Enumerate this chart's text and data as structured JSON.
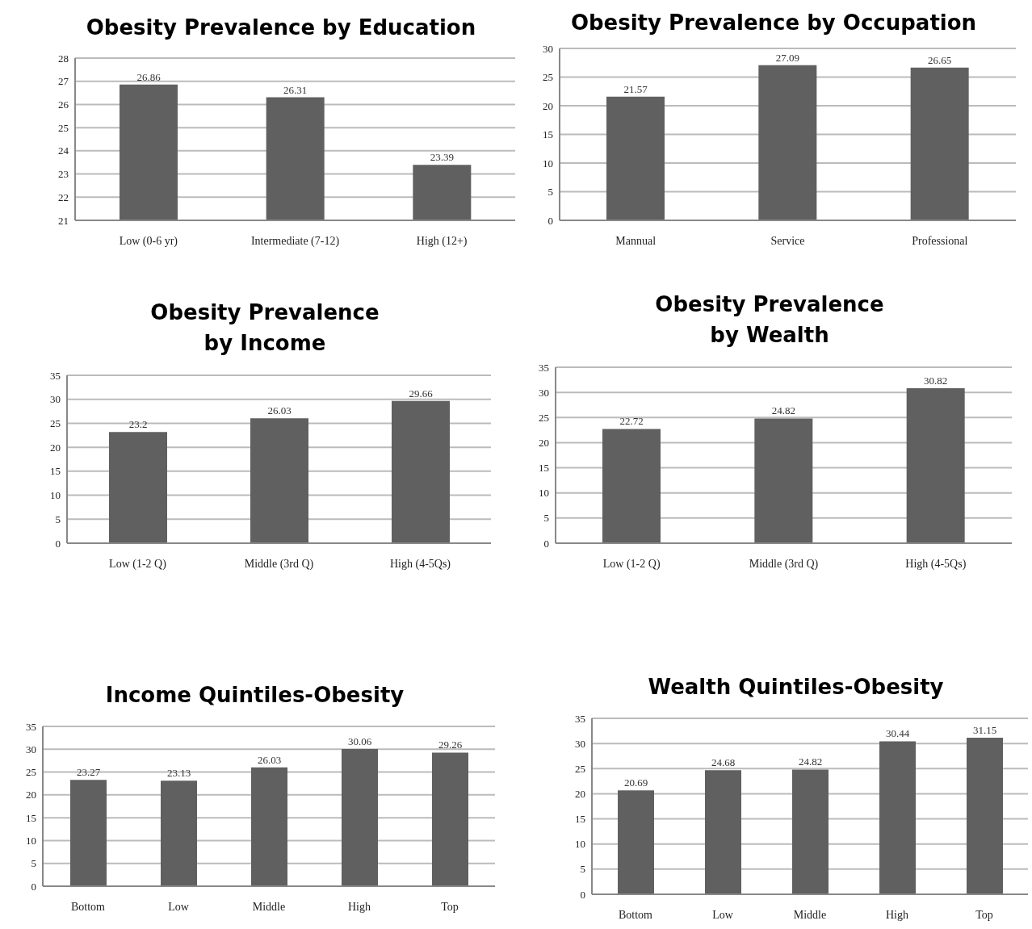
{
  "chart_data": [
    {
      "type": "bar",
      "title": "Obesity Prevalence by Education",
      "categories": [
        "Low (0-6 yr)",
        "Intermediate (7-12)",
        "High (12+)"
      ],
      "values": [
        26.86,
        26.31,
        23.39
      ],
      "color": "#606060",
      "ylim": [
        21,
        28
      ],
      "yticks": [
        21,
        22,
        23,
        24,
        25,
        26,
        27,
        28
      ],
      "grid": "y",
      "data_labels": true
    },
    {
      "type": "bar",
      "title": "Obesity Prevalence by Occupation",
      "categories": [
        "Mannual",
        "Service",
        "Professional"
      ],
      "values": [
        21.57,
        27.09,
        26.65
      ],
      "color": "#606060",
      "ylim": [
        0,
        30
      ],
      "yticks": [
        0,
        5,
        10,
        15,
        20,
        25,
        30
      ],
      "grid": "y",
      "data_labels": true
    },
    {
      "type": "bar",
      "title": "Obesity Prevalence by Income",
      "categories": [
        "Low (1-2 Q)",
        "Middle (3rd Q)",
        "High (4-5Qs)"
      ],
      "values": [
        23.2,
        26.03,
        29.66
      ],
      "color": "#606060",
      "ylim": [
        0,
        35
      ],
      "yticks": [
        0,
        5,
        10,
        15,
        20,
        25,
        30,
        35
      ],
      "grid": "y",
      "data_labels": true
    },
    {
      "type": "bar",
      "title": "Obesity Prevalence by Wealth",
      "categories": [
        "Low (1-2 Q)",
        "Middle (3rd Q)",
        "High (4-5Qs)"
      ],
      "values": [
        22.72,
        24.82,
        30.82
      ],
      "color": "#606060",
      "ylim": [
        0,
        35
      ],
      "yticks": [
        0,
        5,
        10,
        15,
        20,
        25,
        30,
        35
      ],
      "grid": "y",
      "data_labels": true
    },
    {
      "type": "bar",
      "title": "Income Quintiles-Obesity",
      "categories": [
        "Bottom",
        "Low",
        "Middle",
        "High",
        "Top"
      ],
      "values": [
        23.27,
        23.13,
        26.03,
        30.06,
        29.26
      ],
      "color": "#606060",
      "ylim": [
        0,
        35
      ],
      "yticks": [
        0,
        5,
        10,
        15,
        20,
        25,
        30,
        35
      ],
      "grid": "y",
      "data_labels": true
    },
    {
      "type": "bar",
      "title": "Wealth Quintiles-Obesity",
      "categories": [
        "Bottom",
        "Low",
        "Middle",
        "High",
        "Top"
      ],
      "values": [
        20.69,
        24.68,
        24.82,
        30.44,
        31.15
      ],
      "color": "#606060",
      "ylim": [
        0,
        35
      ],
      "yticks": [
        0,
        5,
        10,
        15,
        20,
        25,
        30,
        35
      ],
      "grid": "y",
      "data_labels": true
    }
  ]
}
